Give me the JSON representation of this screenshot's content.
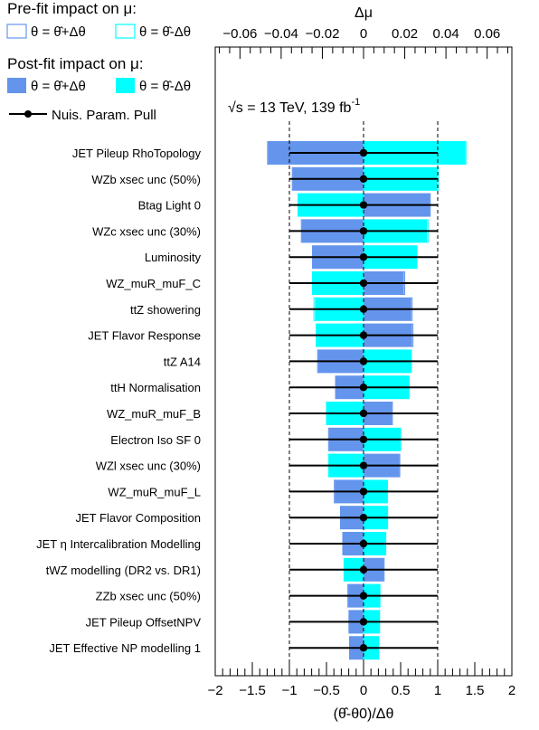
{
  "legend": {
    "prefit_title": "Pre-fit impact on  μ:",
    "prefit_up": "θ = θ̂+Δθ",
    "prefit_down": "θ = θ̂-Δθ",
    "postfit_title": "Post-fit impact on  μ:",
    "postfit_up": "θ = θ̂+Δθ",
    "postfit_down": "θ = θ̂-Δθ",
    "pull": "Nuis. Param. Pull"
  },
  "energy_text": "√s = 13 TeV, 139 fb",
  "energy_sup": "-1",
  "colors": {
    "up": "#6495ED",
    "down": "#00FFFF",
    "pull": "#000000",
    "axis": "#000000"
  },
  "chart_data": {
    "type": "bar",
    "orientation": "horizontal",
    "categories": [
      "JET Pileup RhoTopology",
      "WZb xsec unc (50%)",
      "Btag Light 0",
      "WZc xsec unc (30%)",
      "Luminosity",
      "WZ_muR_muF_C",
      "ttZ showering",
      "JET Flavor Response",
      "ttZ A14",
      "ttH Normalisation",
      "WZ_muR_muF_B",
      "Electron Iso SF 0",
      "WZl xsec unc (30%)",
      "WZ_muR_muF_L",
      "JET Flavor Composition",
      "JET  η Intercalibration Modelling",
      "tWZ modelling (DR2 vs. DR1)",
      "ZZb xsec unc (50%)",
      "JET Pileup OffsetNPV",
      "JET Effective NP modelling 1"
    ],
    "x_bottom": {
      "label": "(θ̂-θ0)/Δθ",
      "lim": [
        -2,
        2
      ],
      "ticks": [
        "−2",
        "−1.5",
        "−1",
        "−0.5",
        "0",
        "0.5",
        "1",
        "1.5",
        "2"
      ]
    },
    "x_top": {
      "label": "Δμ",
      "lim": [
        -0.072,
        0.072
      ],
      "ticks": [
        "−0.06",
        "−0.04",
        "−0.02",
        "0",
        "0.02",
        "0.04",
        "0.06"
      ]
    },
    "reference_lines": [
      -1,
      0,
      1
    ],
    "series": [
      {
        "name": "Pre-fit θ = θ̂+Δθ",
        "values": [
          -0.0466,
          -0.0346,
          0.0324,
          -0.0302,
          -0.0248,
          0.02,
          0.0236,
          0.024,
          -0.0223,
          -0.0136,
          0.014,
          -0.017,
          0.0176,
          -0.0142,
          -0.0112,
          -0.0101,
          0.01,
          -0.0076,
          -0.0071,
          -0.0068
        ]
      },
      {
        "name": "Pre-fit θ = θ̂-Δθ",
        "values": [
          0.0497,
          0.0364,
          -0.0318,
          0.0313,
          0.0259,
          -0.0248,
          -0.0241,
          -0.023,
          0.0232,
          0.0221,
          -0.018,
          0.018,
          -0.017,
          0.0116,
          0.0117,
          0.0108,
          -0.0095,
          0.008,
          0.0078,
          0.0074
        ]
      },
      {
        "name": "Post-fit θ = θ̂+Δθ",
        "values": [
          -0.0464,
          -0.0344,
          0.0322,
          -0.03,
          -0.0246,
          0.0196,
          0.0232,
          0.0236,
          -0.0221,
          -0.0134,
          0.0138,
          -0.0168,
          0.0174,
          -0.014,
          -0.0111,
          -0.01,
          0.0098,
          -0.0075,
          -0.007,
          -0.0067
        ]
      },
      {
        "name": "Post-fit θ = θ̂-Δθ",
        "values": [
          0.0494,
          0.0359,
          -0.0316,
          0.0308,
          0.0257,
          -0.0246,
          -0.0236,
          -0.0228,
          0.023,
          0.022,
          -0.0178,
          0.0178,
          -0.0168,
          0.0115,
          0.0116,
          0.0107,
          -0.0093,
          0.0079,
          0.0077,
          0.0073
        ]
      },
      {
        "name": "Nuis. Param. Pull",
        "pull": [
          0,
          0,
          0,
          0,
          0,
          0,
          0,
          0,
          0,
          0,
          0,
          0,
          0,
          0,
          0,
          0,
          0,
          0,
          0,
          0
        ],
        "error_low": [
          -1,
          -1,
          -1,
          -1,
          -1,
          -1,
          -1,
          -1,
          -1,
          -1,
          -1,
          -1,
          -1,
          -1,
          -1,
          -1,
          -1,
          -1,
          -1,
          -1
        ],
        "error_high": [
          1,
          1,
          1,
          1,
          1,
          1,
          1,
          1,
          1,
          1,
          1,
          1,
          1,
          1,
          1,
          1,
          1,
          1,
          1,
          1
        ]
      }
    ],
    "grid": false
  }
}
